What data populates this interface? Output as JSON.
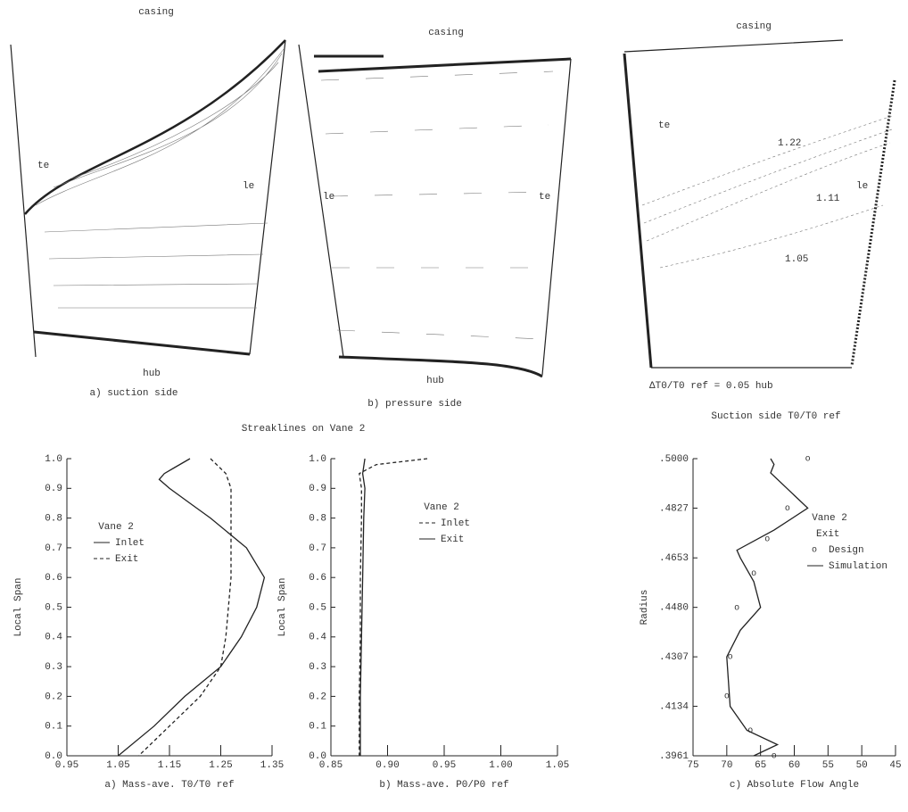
{
  "figure_caption": "Streaklines on Vane 2",
  "panels": [
    {
      "casing": "casing",
      "te": "te",
      "le": "le",
      "hub": "hub",
      "caption": "a) suction side"
    },
    {
      "casing": "casing",
      "te": "te",
      "le": "le",
      "hub": "hub",
      "caption": "b) pressure side"
    },
    {
      "casing": "casing",
      "te": "te",
      "le": "le",
      "contours": [
        "1.22",
        "1.11",
        "1.05"
      ],
      "note": "ΔT0/T0 ref = 0.05 hub",
      "caption": "Suction side T0/T0 ref"
    }
  ],
  "chart_data": [
    {
      "type": "line",
      "x_label": "a) Mass-ave. T0/T0 ref",
      "y_label": "Local Span",
      "legend_title": "Vane 2",
      "xlim": [
        0.95,
        1.35
      ],
      "xticks": [
        0.95,
        1.05,
        1.15,
        1.25,
        1.35
      ],
      "ylim": [
        0,
        1
      ],
      "yticks": [
        {
          "value": 0,
          "label": "0.0"
        },
        0.1,
        0.2,
        0.3,
        0.4,
        0.5,
        0.6,
        0.7,
        0.8,
        0.9,
        {
          "value": 1,
          "label": "1.0"
        }
      ],
      "series": [
        {
          "name": "Inlet",
          "color": "#222222",
          "style": "solid",
          "x": [
            1.19,
            1.16,
            1.14,
            1.13,
            1.15,
            1.19,
            1.23,
            1.3,
            1.335,
            1.32,
            1.29,
            1.25,
            1.18,
            1.12,
            1.05
          ],
          "y": [
            1.0,
            0.97,
            0.95,
            0.93,
            0.9,
            0.85,
            0.8,
            0.7,
            0.6,
            0.5,
            0.4,
            0.3,
            0.2,
            0.1,
            0.0
          ]
        },
        {
          "name": "Exit",
          "color": "#222222",
          "style": "dashed",
          "x": [
            1.23,
            1.26,
            1.27,
            1.27,
            1.27,
            1.27,
            1.265,
            1.26,
            1.25,
            1.21,
            1.15,
            1.09
          ],
          "y": [
            1.0,
            0.95,
            0.9,
            0.8,
            0.7,
            0.6,
            0.5,
            0.4,
            0.3,
            0.2,
            0.1,
            0.0
          ]
        }
      ]
    },
    {
      "type": "line",
      "x_label": "b) Mass-ave. P0/P0 ref",
      "y_label": "Local Span",
      "legend_title": "Vane 2",
      "xlim": [
        0.85,
        1.05
      ],
      "xticks": [
        0.85,
        {
          "value": 0.9,
          "label": "0.90"
        },
        0.95,
        {
          "value": 1,
          "label": "1.00"
        },
        1.05
      ],
      "ylim": [
        0,
        1
      ],
      "yticks": [
        {
          "value": 0,
          "label": "0.0"
        },
        0.1,
        0.2,
        0.3,
        0.4,
        0.5,
        0.6,
        0.7,
        0.8,
        0.9,
        {
          "value": 1,
          "label": "1.0"
        }
      ],
      "series": [
        {
          "name": "Inlet",
          "color": "#222222",
          "style": "dashed",
          "x": [
            0.935,
            0.89,
            0.875,
            0.877,
            0.877,
            0.876,
            0.876,
            0.875,
            0.875,
            0.875
          ],
          "y": [
            1.0,
            0.98,
            0.95,
            0.9,
            0.8,
            0.6,
            0.4,
            0.2,
            0.1,
            0.0
          ]
        },
        {
          "name": "Exit",
          "color": "#222222",
          "style": "solid",
          "x": [
            0.88,
            0.878,
            0.88,
            0.879,
            0.878,
            0.877,
            0.876,
            0.876
          ],
          "y": [
            1.0,
            0.95,
            0.9,
            0.8,
            0.6,
            0.4,
            0.2,
            0.0
          ]
        }
      ]
    },
    {
      "type": "line",
      "x_label": "c) Absolute Flow Angle",
      "y_label": "Radius",
      "legend_title": "Vane 2",
      "legend_subtitle": "Exit",
      "xlim": [
        75,
        45
      ],
      "xticks": [
        75,
        70,
        65,
        60,
        55,
        50,
        45
      ],
      "ylim": [
        0.3961,
        0.5
      ],
      "yticks": [
        {
          "value": 0.3961,
          "label": ".3961"
        },
        {
          "value": 0.4134,
          "label": ".4134"
        },
        {
          "value": 0.4307,
          "label": ".4307"
        },
        {
          "value": 0.448,
          "label": ".4480"
        },
        {
          "value": 0.4653,
          "label": ".4653"
        },
        {
          "value": 0.4827,
          "label": ".4827"
        },
        {
          "value": 0.5,
          "label": ".5000"
        }
      ],
      "series": [
        {
          "name": "Design",
          "color": "#222222",
          "style": "markers",
          "x": [
            58,
            61,
            64,
            66,
            68.5,
            69.5,
            70,
            66.5,
            63
          ],
          "y": [
            0.5,
            0.4827,
            0.472,
            0.46,
            0.448,
            0.4307,
            0.417,
            0.405,
            0.3961
          ]
        },
        {
          "name": "Simulation",
          "color": "#222222",
          "style": "solid",
          "x": [
            63.5,
            63,
            63.5,
            58,
            63,
            68.5,
            68,
            66,
            65,
            68,
            70,
            69.5,
            67,
            62.5,
            66
          ],
          "y": [
            0.5,
            0.498,
            0.495,
            0.4827,
            0.475,
            0.468,
            0.4653,
            0.457,
            0.448,
            0.44,
            0.4307,
            0.4134,
            0.405,
            0.4,
            0.3961
          ]
        }
      ]
    }
  ]
}
